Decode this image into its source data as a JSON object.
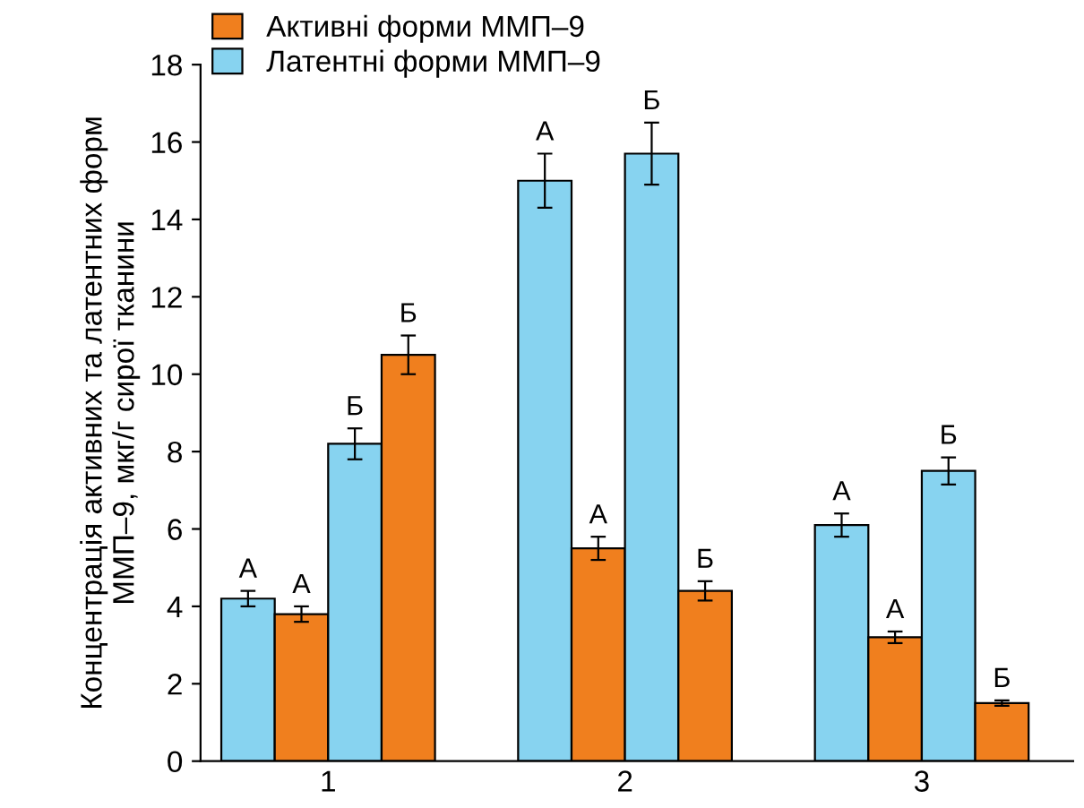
{
  "chart_data": {
    "type": "bar",
    "ylabel": "Концентрація активних та латентних форм\nММП–9, мкг/г сирої тканини",
    "categories": [
      "1",
      "2",
      "3"
    ],
    "series": [
      {
        "name": "Латентні форми ММП–9",
        "color": "#87d3f0",
        "values": [
          4.2,
          15.0,
          6.1
        ],
        "errors": [
          0.2,
          0.7,
          0.3
        ],
        "value_labels": [
          "А",
          "А",
          "А"
        ]
      },
      {
        "name": "Активні форми ММП–9",
        "color": "#f07f1e",
        "values": [
          3.8,
          5.5,
          3.2
        ],
        "errors": [
          0.2,
          0.3,
          0.15
        ],
        "value_labels": [
          "А",
          "А",
          "А"
        ]
      },
      {
        "color": "#87d3f0",
        "values": [
          8.2,
          15.7,
          7.5
        ],
        "errors": [
          0.4,
          0.8,
          0.35
        ],
        "value_labels": [
          "Б",
          "Б",
          "Б"
        ]
      },
      {
        "color": "#f07f1e",
        "values": [
          10.5,
          4.4,
          1.5
        ],
        "errors": [
          0.5,
          0.25,
          0.07
        ],
        "value_labels": [
          "Б",
          "Б",
          "Б"
        ]
      }
    ],
    "ylim": [
      0,
      18
    ],
    "yticks": [
      0,
      2,
      4,
      6,
      8,
      10,
      12,
      14,
      16,
      18
    ],
    "grid": false,
    "legend": "top left"
  }
}
